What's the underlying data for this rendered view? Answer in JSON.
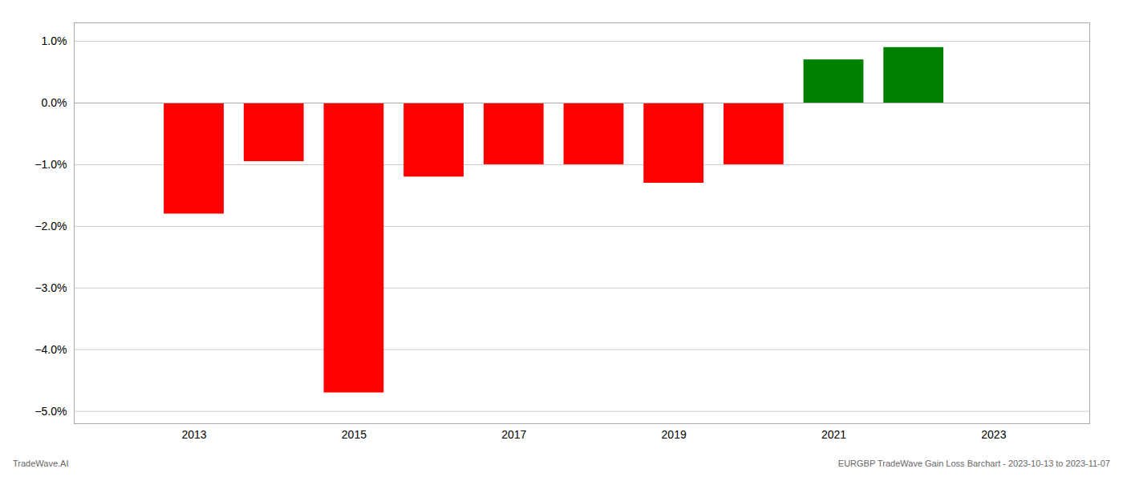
{
  "chart_data": {
    "type": "bar",
    "x": [
      2013,
      2014,
      2015,
      2016,
      2017,
      2018,
      2019,
      2020,
      2021,
      2022
    ],
    "values": [
      -0.018,
      -0.0095,
      -0.047,
      -0.012,
      -0.01,
      -0.01,
      -0.013,
      -0.01,
      0.007,
      0.009
    ],
    "colors": [
      "#ff0000",
      "#ff0000",
      "#ff0000",
      "#ff0000",
      "#ff0000",
      "#ff0000",
      "#ff0000",
      "#ff0000",
      "#008000",
      "#008000"
    ],
    "xlim": [
      2011.5,
      2024.2
    ],
    "xticks": [
      2013,
      2015,
      2017,
      2019,
      2021,
      2023
    ],
    "ylim": [
      -0.052,
      0.013
    ],
    "yticks": [
      {
        "value": -0.05,
        "label": "−5.0%"
      },
      {
        "value": -0.04,
        "label": "−4.0%"
      },
      {
        "value": -0.03,
        "label": "−3.0%"
      },
      {
        "value": -0.02,
        "label": "−2.0%"
      },
      {
        "value": -0.01,
        "label": "−1.0%"
      },
      {
        "value": 0.0,
        "label": "0.0%"
      },
      {
        "value": 0.01,
        "label": "1.0%"
      }
    ],
    "grid": true,
    "annotations": [
      "TradeWave.AI",
      "EURGBP TradeWave Gain Loss Barchart - 2023-10-13 to 2023-11-07"
    ]
  }
}
